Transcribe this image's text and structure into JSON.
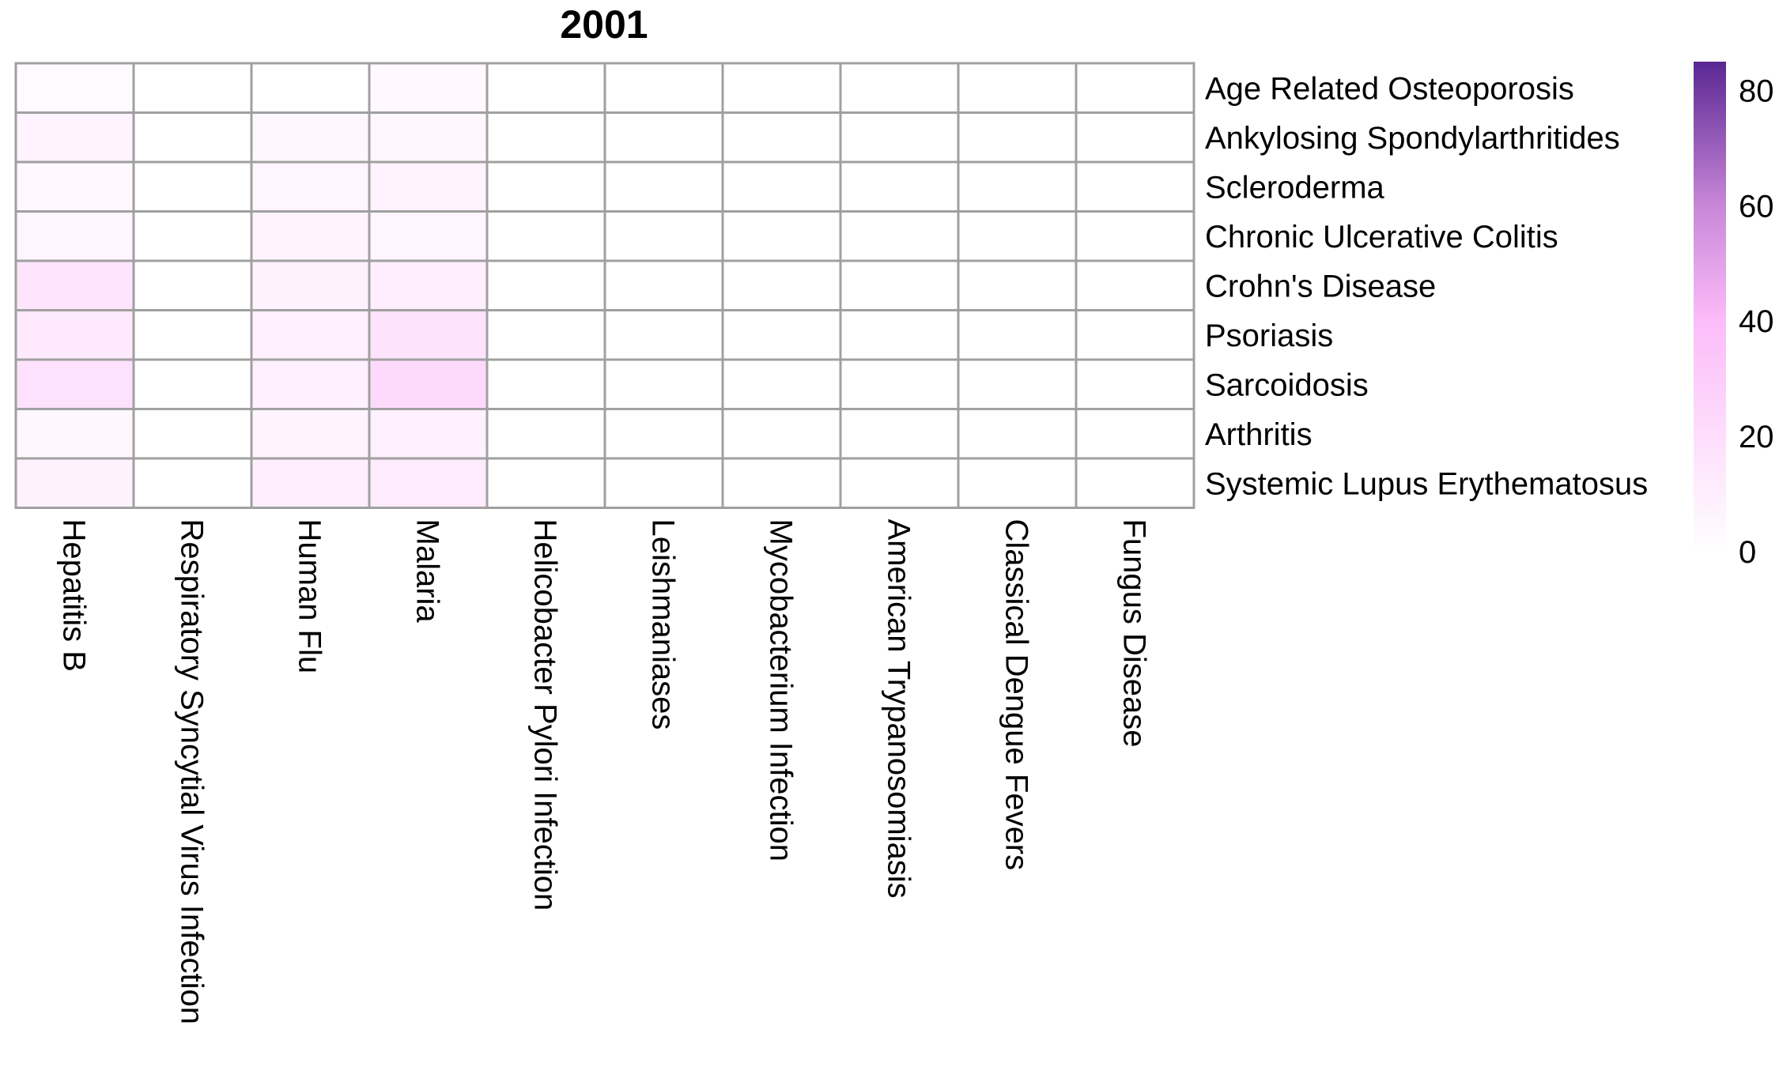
{
  "chart_data": {
    "type": "heatmap",
    "title": "2001",
    "rows": [
      "Age Related Osteoporosis",
      "Ankylosing Spondylarthritides",
      "Scleroderma",
      "Chronic Ulcerative Colitis",
      "Crohn's Disease",
      "Psoriasis",
      "Sarcoidosis",
      "Arthritis",
      "Systemic Lupus Erythematosus"
    ],
    "columns": [
      "Hepatitis B",
      "Respiratory Syncytial Virus Infection",
      "Human Flu",
      "Malaria",
      "Helicobacter Pylori Infection",
      "Leishmaniases",
      "Mycobacterium Infection",
      "American Trypanosomiasis",
      "Classical Dengue Fevers",
      "Fungus Disease"
    ],
    "values": [
      [
        3,
        0,
        0,
        4,
        0,
        0,
        0,
        0,
        0,
        0
      ],
      [
        7,
        0,
        5,
        5,
        0,
        0,
        0,
        0,
        0,
        0
      ],
      [
        4,
        0,
        6,
        7,
        0,
        0,
        0,
        0,
        0,
        0
      ],
      [
        6,
        0,
        7,
        6,
        0,
        0,
        0,
        0,
        0,
        0
      ],
      [
        16,
        0,
        8,
        10,
        0,
        0,
        0,
        0,
        0,
        0
      ],
      [
        13,
        0,
        9,
        17,
        0,
        0,
        0,
        0,
        0,
        0
      ],
      [
        18,
        0,
        9,
        22,
        0,
        0,
        0,
        0,
        0,
        0
      ],
      [
        5,
        0,
        7,
        9,
        0,
        0,
        0,
        0,
        0,
        0
      ],
      [
        8,
        0,
        10,
        12,
        0,
        0,
        0,
        0,
        0,
        0
      ]
    ],
    "color_scale": {
      "min": 0,
      "max": 85,
      "ticks": [
        "0",
        "20",
        "40",
        "60",
        "80"
      ],
      "stops": [
        {
          "value": 0,
          "color": "#ffffff"
        },
        {
          "value": 40,
          "color": "#fcbcf9"
        },
        {
          "value": 60,
          "color": "#c887d8"
        },
        {
          "value": 85,
          "color": "#5a2793"
        }
      ]
    },
    "grid_color": "#a0a0a0",
    "legend_position": "right"
  }
}
